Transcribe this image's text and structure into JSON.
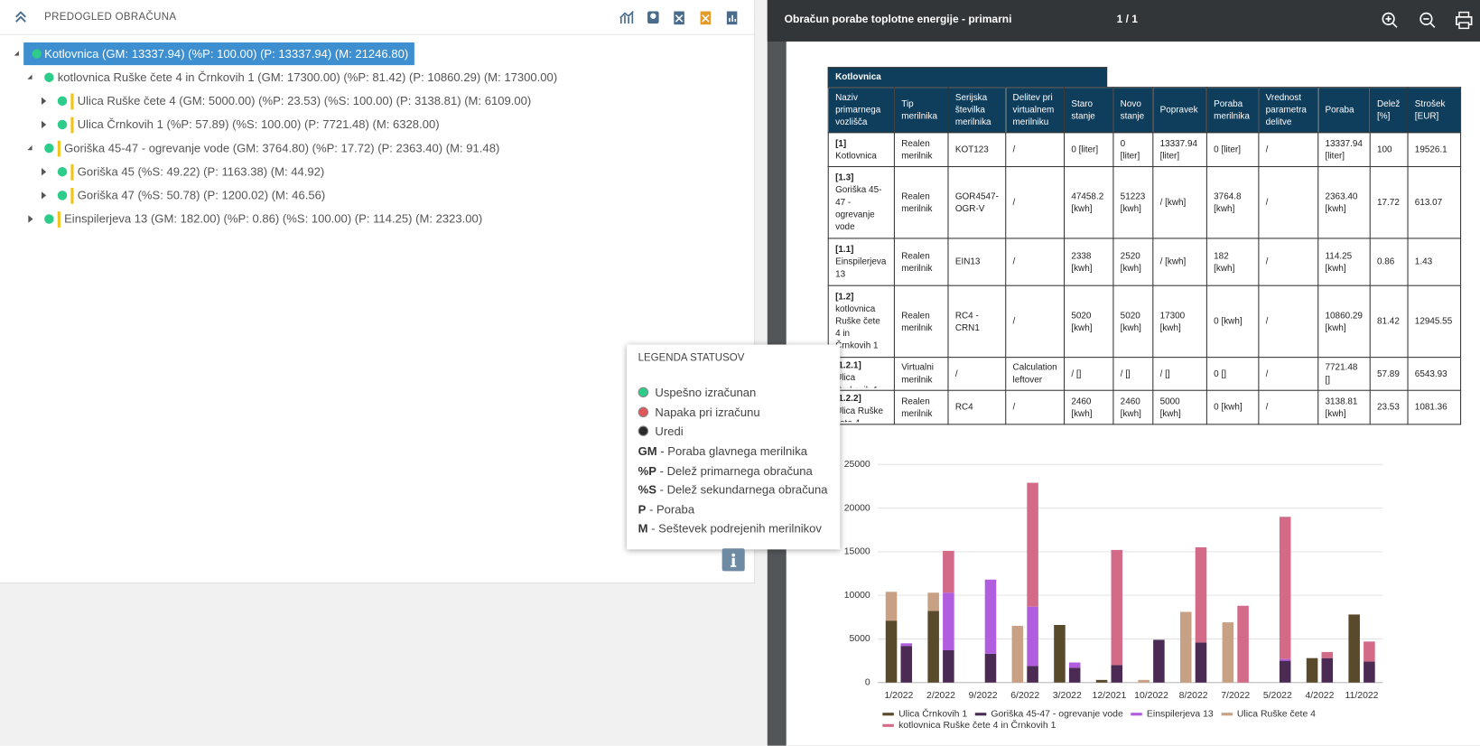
{
  "left_panel": {
    "title": "PREDOGLED OBRAČUNA",
    "tree": [
      {
        "label": "Kotlovnica (GM: 13337.94) (%P: 100.00) (P: 13337.94) (M: 21246.80)",
        "children": [
          {
            "label": "kotlovnica Ruške čete 4 in Črnkovih 1 (GM: 17300.00) (%P: 81.42) (P: 10860.29) (M: 17300.00)",
            "children": [
              {
                "label": "Ulica Ruške čete 4 (GM: 5000.00) (%P: 23.53) (%S: 100.00) (P: 3138.81) (M: 6109.00)"
              },
              {
                "label": "Ulica Črnkovih 1 (%P: 57.89) (%S: 100.00) (P: 7721.48) (M: 6328.00)"
              }
            ]
          },
          {
            "label": "Goriška 45-47 - ogrevanje vode (GM: 3764.80) (%P: 17.72) (P: 2363.40) (M: 91.48)",
            "children": [
              {
                "label": "Goriška 45 (%S: 49.22) (P: 1163.38) (M: 44.92)"
              },
              {
                "label": "Goriška 47 (%S: 50.78) (P: 1200.02) (M: 46.56)"
              }
            ]
          },
          {
            "label": "Einspilerjeva 13 (GM: 182.00) (%P: 0.86) (%S: 100.00) (P: 114.25) (M: 2323.00)"
          }
        ]
      }
    ]
  },
  "legend": {
    "title": "LEGENDA STATUSOV",
    "statuses": [
      {
        "text": "Uspešno izračunan",
        "color": "#2ecc8a"
      },
      {
        "text": "Napaka pri izračunu",
        "color": "#e0575b"
      },
      {
        "text": "Uredi",
        "color": "#2b2b2b"
      }
    ],
    "abbreviations": [
      {
        "abbr": "GM",
        "desc": "- Poraba glavnega merilnika"
      },
      {
        "abbr": "%P",
        "desc": "- Delež primarnega obračuna"
      },
      {
        "abbr": "%S",
        "desc": "- Delež sekundarnega obračuna"
      },
      {
        "abbr": "P",
        "desc": "- Poraba"
      },
      {
        "abbr": "M",
        "desc": "- Seštevek podrejenih merilnikov"
      }
    ]
  },
  "viewer": {
    "title": "Obračun porabe toplotne energije - primarni",
    "page": "1 / 1"
  },
  "table": {
    "caption": "Kotlovnica",
    "headers": [
      "Naziv primarnega vozlišča",
      "Tip merilnika",
      "Serijska številka merilnika",
      "Delitev pri virtualnem merilniku",
      "Staro stanje",
      "Novo stanje",
      "Popravek",
      "Poraba merilnika",
      "Vrednost parametra delitve",
      "Poraba",
      "Delež [%]",
      "Strošek [EUR]"
    ],
    "rows": [
      [
        {
          "code": "[1]",
          "name": "Kotlovnica"
        },
        "Realen merilnik",
        "KOT123",
        "/",
        "0 [liter]",
        "0 [liter]",
        "13337.94 [liter]",
        "0 [liter]",
        "/",
        "13337.94 [liter]",
        "100",
        "19526.1"
      ],
      [
        {
          "code": "[1.3]",
          "name": "Goriška 45-47 - ogrevanje vode"
        },
        "Realen merilnik",
        "GOR4547-OGR-V",
        "/",
        "47458.2 [kwh]",
        "51223 [kwh]",
        "/ [kwh]",
        "3764.8 [kwh]",
        "/",
        "2363.40 [kwh]",
        "17.72",
        "613.07"
      ],
      [
        {
          "code": "[1.1]",
          "name": "Einspilerjeva 13"
        },
        "Realen merilnik",
        "EIN13",
        "/",
        "2338 [kwh]",
        "2520 [kwh]",
        "/ [kwh]",
        "182 [kwh]",
        "/",
        "114.25 [kwh]",
        "0.86",
        "1.43"
      ],
      [
        {
          "code": "[1.2]",
          "name": "kotlovnica Ruške čete 4 in Črnkovih 1"
        },
        "Realen merilnik",
        "RC4 - CRN1",
        "/",
        "5020 [kwh]",
        "5020 [kwh]",
        "17300 [kwh]",
        "0 [kwh]",
        "/",
        "10860.29 [kwh]",
        "81.42",
        "12945.55"
      ],
      [
        {
          "code": "[1.2.1]",
          "name": "Ulica Črnkovih 1"
        },
        "Virtualni merilnik",
        "/",
        "Calculation leftover",
        "/ []",
        "/ []",
        "/ []",
        "0 []",
        "/",
        "7721.48 []",
        "57.89",
        "6543.93"
      ],
      [
        {
          "code": "[1.2.2]",
          "name": "Ulica Ruške čete 4"
        },
        "Realen merilnik",
        "RC4",
        "/",
        "2460 [kwh]",
        "2460 [kwh]",
        "5000 [kwh]",
        "0 [kwh]",
        "/",
        "3138.81 [kwh]",
        "23.53",
        "1081.36"
      ]
    ]
  },
  "chart_data": {
    "type": "bar",
    "stacked": true,
    "categories": [
      "1/2022",
      "2/2022",
      "9/2022",
      "6/2022",
      "3/2022",
      "12/2021",
      "10/2022",
      "8/2022",
      "7/2022",
      "5/2022",
      "4/2022",
      "11/2022"
    ],
    "series": [
      {
        "name": "Ulica Črnkovih 1",
        "color": "#5a4a2c",
        "stack": 0,
        "values": [
          7100,
          8200,
          0,
          0,
          6600,
          300,
          0,
          0,
          0,
          0,
          2800,
          7800
        ]
      },
      {
        "name": "Goriška 45-47 - ogrevanje vode",
        "color": "#4b2b54",
        "stack": 1,
        "values": [
          4200,
          3700,
          3300,
          1900,
          1700,
          2000,
          4900,
          4600,
          0,
          2500,
          2800,
          2400
        ]
      },
      {
        "name": "Einspilerjeva 13",
        "color": "#b15de0",
        "stack": 1,
        "values": [
          300,
          6600,
          8500,
          6800,
          600,
          0,
          0,
          0,
          0,
          200,
          0,
          0
        ]
      },
      {
        "name": "Ulica Ruške čete 4",
        "color": "#c8a083",
        "stack": 0,
        "values": [
          3300,
          2100,
          0,
          6500,
          0,
          0,
          300,
          8100,
          6900,
          0,
          0,
          0
        ]
      },
      {
        "name": "kotlovnica Ruške čete 4 in Črnkovih 1",
        "color": "#d26a88",
        "stack": 1,
        "values": [
          0,
          4800,
          0,
          14200,
          0,
          13200,
          0,
          10900,
          8800,
          16300,
          700,
          2300
        ]
      }
    ],
    "ylim": [
      0,
      25000
    ],
    "yticks": [
      0,
      5000,
      10000,
      15000,
      20000,
      25000
    ],
    "grid": true
  }
}
